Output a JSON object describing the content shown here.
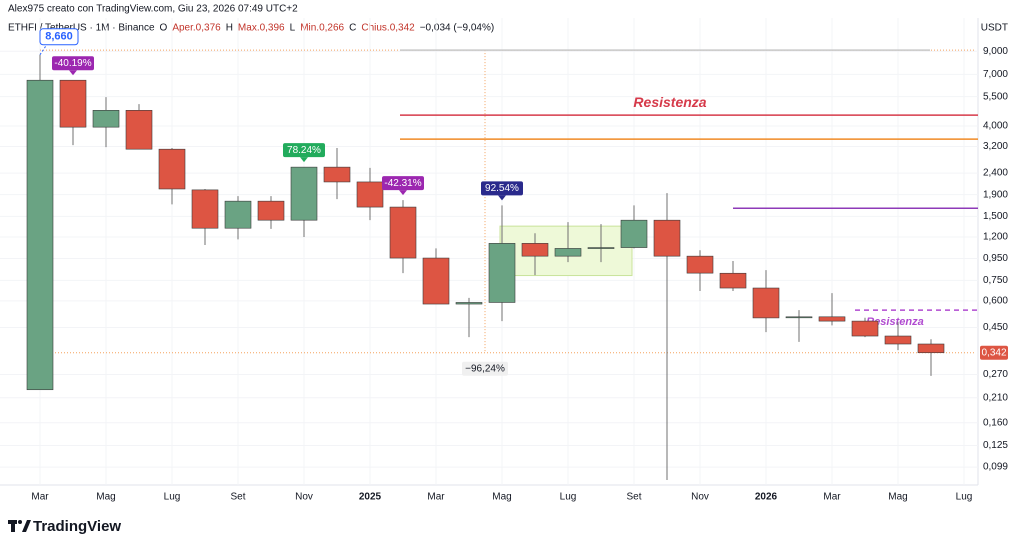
{
  "chart_data": {
    "type": "candlestick",
    "credit": "Alex975 creato con TradingView.com, Giu 23, 2026 07:49 UTC+2",
    "header": [
      "ETHFI / TetherUS · 1M · Binance",
      "O",
      "Aper.0,376",
      "H",
      "Max.0,396",
      "L",
      "Min.0,266",
      "C",
      "Chius.0,342",
      "−0,034 (−9,04%)"
    ],
    "axis_unit": "USDT",
    "brand": "TradingView",
    "log_scale": true,
    "grid": true,
    "up_color": "#6aa383",
    "down_color": "#dd5543",
    "categories": [
      "Mar",
      null,
      "Mag",
      null,
      "Lug",
      null,
      "Set",
      null,
      "Nov",
      null,
      "2025",
      null,
      "Mar",
      null,
      "Mag",
      null,
      "Lug",
      null,
      "Set",
      null,
      "Nov",
      null,
      "2026",
      null,
      "Mar",
      null,
      "Mag",
      null,
      "Lug"
    ],
    "open": [
      0.229,
      6.57,
      3.95,
      4.74,
      3.11,
      2.0,
      1.32,
      1.77,
      1.44,
      2.56,
      2.18,
      1.66,
      0.955,
      0.58,
      0.59,
      1.12,
      0.975,
      1.06,
      1.07,
      1.44,
      0.975,
      0.81,
      0.69,
      0.5,
      0.505,
      0.482,
      0.41,
      0.376,
      null
    ],
    "high": [
      8.66,
      6.57,
      5.47,
      5.07,
      3.15,
      2.02,
      1.87,
      1.87,
      2.56,
      3.15,
      2.54,
      1.79,
      1.06,
      0.62,
      1.69,
      1.25,
      1.41,
      1.38,
      1.69,
      1.93,
      1.04,
      0.925,
      0.838,
      0.543,
      0.653,
      0.5,
      0.478,
      0.396,
      null
    ],
    "low": [
      0.229,
      3.25,
      3.18,
      3.11,
      1.71,
      1.1,
      1.17,
      1.31,
      1.2,
      1.81,
      1.44,
      0.811,
      0.58,
      0.405,
      0.482,
      0.794,
      0.914,
      0.914,
      1.06,
      0.086,
      0.668,
      0.668,
      0.428,
      0.385,
      0.46,
      0.405,
      0.352,
      0.266,
      null
    ],
    "close": [
      6.57,
      3.95,
      4.74,
      3.11,
      2.02,
      1.32,
      1.77,
      1.44,
      2.56,
      2.18,
      1.66,
      0.955,
      0.58,
      0.59,
      1.12,
      0.975,
      1.06,
      1.07,
      1.44,
      0.975,
      0.811,
      0.69,
      0.499,
      0.505,
      0.482,
      0.41,
      0.376,
      0.342,
      null
    ],
    "ylim": [
      0.0815,
      12.9
    ],
    "yticks": [
      {
        "value": 0.099,
        "label": "0,099"
      },
      {
        "value": 0.125,
        "label": "0,125"
      },
      {
        "value": 0.16,
        "label": "0,160"
      },
      {
        "value": 0.21,
        "label": "0,210"
      },
      {
        "value": 0.27,
        "label": "0,270"
      },
      {
        "value": 0.45,
        "label": "0,450"
      },
      {
        "value": 0.6,
        "label": "0,600"
      },
      {
        "value": 0.75,
        "label": "0,750"
      },
      {
        "value": 0.95,
        "label": "0,950"
      },
      {
        "value": 1.2,
        "label": "1,200"
      },
      {
        "value": 1.5,
        "label": "1,500"
      },
      {
        "value": 1.9,
        "label": "1,900"
      },
      {
        "value": 2.4,
        "label": "2,400"
      },
      {
        "value": 3.2,
        "label": "3,200"
      },
      {
        "value": 4,
        "label": "4,000"
      },
      {
        "value": 5.5,
        "label": "5,500"
      },
      {
        "value": 7,
        "label": "7,000"
      },
      {
        "value": 9,
        "label": "9,000"
      }
    ],
    "price_label": {
      "value": 0.342,
      "label": "0,342"
    },
    "lines": [
      {
        "value": 9.1,
        "color": "#c8c8c8"
      },
      {
        "value": 4.5,
        "color": "#d63a4a",
        "label": "Resistenza"
      },
      {
        "value": 3.47,
        "color": "#f08a24"
      },
      {
        "value": 1.64,
        "color": "#8e3ab8"
      },
      {
        "value": 0.543,
        "color": "#b04ad0",
        "label": "Resistenza",
        "dashed": true
      }
    ],
    "measure": {
      "from": 9.1,
      "to": 0.342,
      "label": "−96,24%",
      "color": "#f5a25d"
    },
    "zone": {
      "top": 1.35,
      "bottom": 0.79,
      "color": "#eef9d8"
    },
    "annotations": [
      {
        "text": "8,660",
        "color": "#2962ff"
      },
      {
        "text": "-40.19%",
        "color": "#9c27b0"
      },
      {
        "text": "78.24%",
        "color": "#22ab5c"
      },
      {
        "text": "-42.31%",
        "color": "#9c27b0"
      },
      {
        "text": "92.54%",
        "color": "#2a2a8c"
      }
    ]
  }
}
